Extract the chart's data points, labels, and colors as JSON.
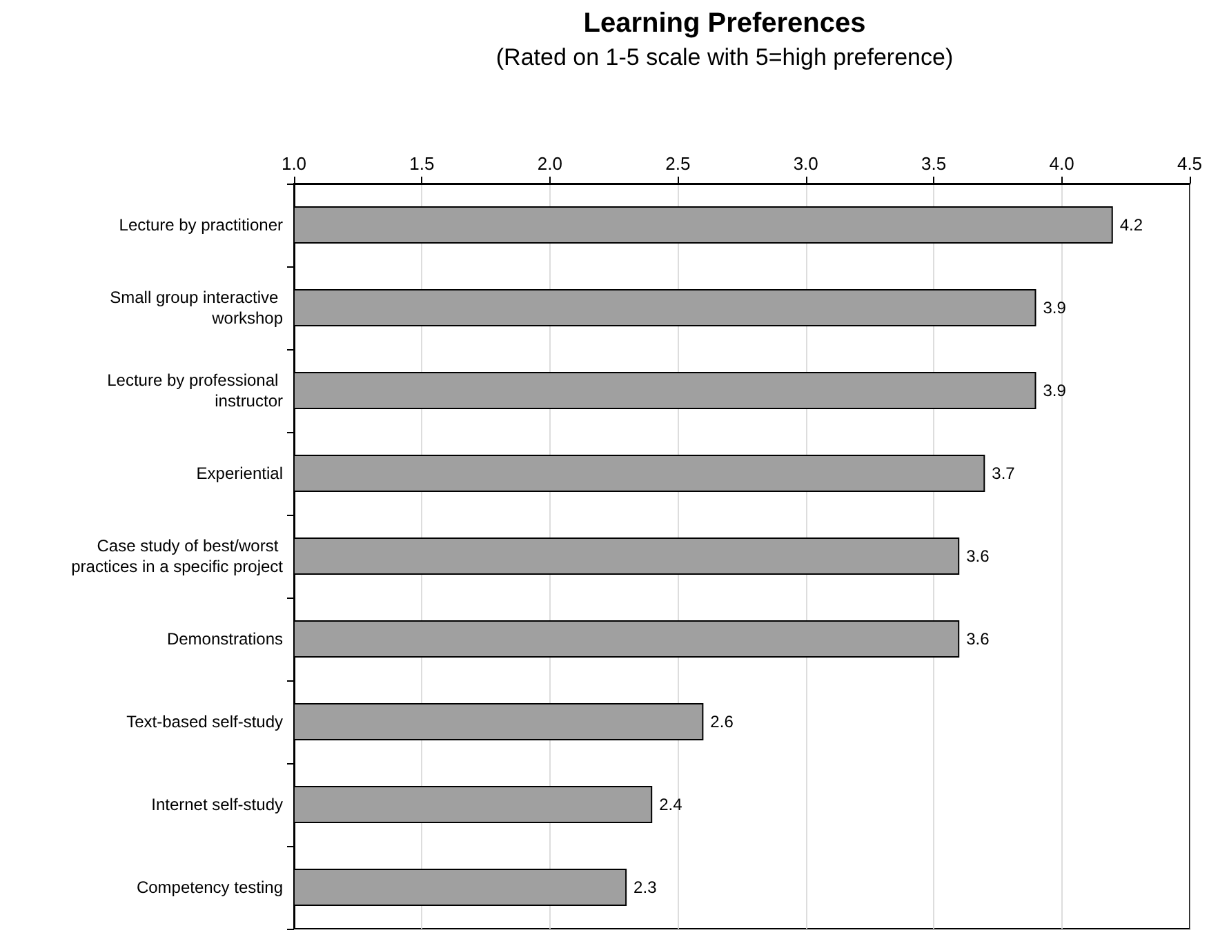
{
  "chart_data": {
    "type": "bar",
    "orientation": "horizontal",
    "title": "Learning Preferences",
    "subtitle": "(Rated on 1-5 scale with 5=high preference)",
    "categories": [
      "Lecture by practitioner",
      "Small group interactive workshop",
      "Lecture by professional instructor",
      "Experiential",
      "Case study of best/worst practices in a specific project",
      "Demonstrations",
      "Text-based self-study",
      "Internet self-study",
      "Competency testing"
    ],
    "values": [
      4.2,
      3.9,
      3.9,
      3.7,
      3.6,
      3.6,
      2.6,
      2.4,
      2.3
    ],
    "color": "#a0a0a0",
    "xlim": [
      1,
      4.5
    ],
    "xticks": [
      {
        "value": 1,
        "label": "1.0"
      },
      {
        "value": 1.5,
        "label": "1.5"
      },
      {
        "value": 2,
        "label": "2.0"
      },
      {
        "value": 2.5,
        "label": "2.5"
      },
      {
        "value": 3,
        "label": "3.0"
      },
      {
        "value": 3.5,
        "label": "3.5"
      },
      {
        "value": 4,
        "label": "4.0"
      },
      {
        "value": 4.5,
        "label": "4.5"
      }
    ],
    "grid": "x",
    "data_labels": true
  }
}
